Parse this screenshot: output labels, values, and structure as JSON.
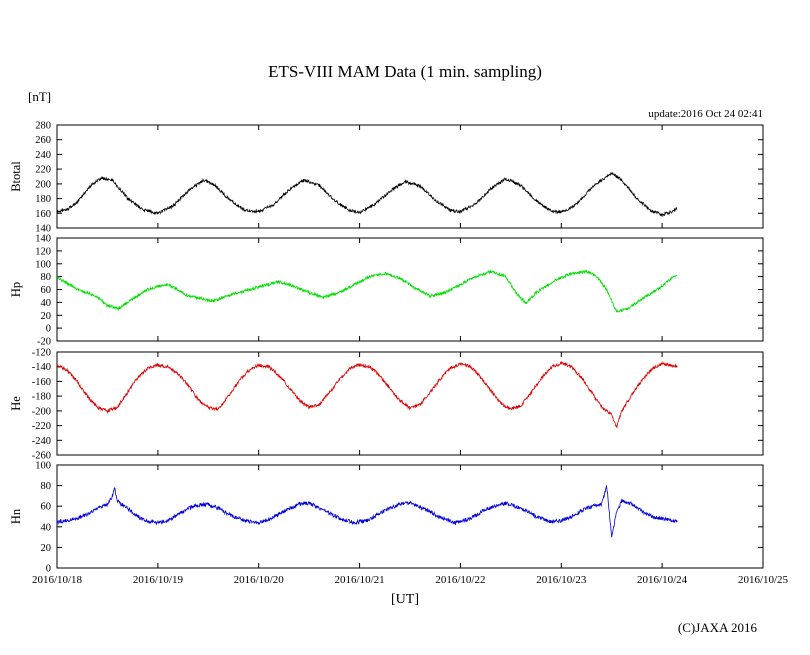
{
  "chart_data": {
    "type": "line",
    "title": "ETS-VIII MAM Data (1 min. sampling)",
    "ylabel_unit": "[nT]",
    "xlabel": "[UT]",
    "annotation_update": "update:2016 Oct 24 02:41",
    "xlim_days": [
      0,
      7
    ],
    "xtick_labels": [
      "2016/10/18",
      "2016/10/19",
      "2016/10/20",
      "2016/10/21",
      "2016/10/22",
      "2016/10/23",
      "2016/10/24",
      "2016/10/25"
    ],
    "legend": "none",
    "grid": false,
    "panels": [
      {
        "name": "Btotal",
        "ylabel": "Btotal",
        "color": "#000000",
        "ylim": [
          140,
          280
        ],
        "yticks": [
          140,
          160,
          180,
          200,
          220,
          240,
          260,
          280
        ],
        "noise_amplitude": 2.0,
        "keypoints": {
          "t_days": [
            0,
            0.1,
            0.2,
            0.35,
            0.45,
            0.55,
            0.7,
            0.85,
            1.0,
            1.15,
            1.3,
            1.45,
            1.55,
            1.7,
            1.85,
            2.0,
            2.15,
            2.3,
            2.45,
            2.6,
            2.75,
            2.9,
            3.0,
            3.15,
            3.3,
            3.45,
            3.6,
            3.75,
            3.9,
            4.0,
            4.15,
            4.3,
            4.45,
            4.6,
            4.75,
            4.9,
            5.0,
            5.15,
            5.3,
            5.45,
            5.5,
            5.6,
            5.75,
            5.9,
            6.0,
            6.1,
            6.15
          ],
          "values_nT": [
            162,
            165,
            175,
            200,
            208,
            205,
            180,
            165,
            160,
            170,
            190,
            205,
            200,
            180,
            165,
            162,
            172,
            192,
            205,
            198,
            178,
            164,
            161,
            172,
            190,
            203,
            197,
            178,
            164,
            162,
            173,
            193,
            207,
            198,
            177,
            163,
            161,
            172,
            195,
            210,
            215,
            205,
            180,
            163,
            158,
            162,
            168
          ]
        }
      },
      {
        "name": "Hp",
        "ylabel": "Hp",
        "color": "#00dd00",
        "ylim": [
          -20,
          140
        ],
        "yticks": [
          -20,
          0,
          20,
          40,
          60,
          80,
          100,
          120,
          140
        ],
        "noise_amplitude": 2.2,
        "keypoints": {
          "t_days": [
            0,
            0.1,
            0.2,
            0.3,
            0.4,
            0.5,
            0.6,
            0.7,
            0.8,
            0.9,
            1.0,
            1.1,
            1.2,
            1.3,
            1.45,
            1.55,
            1.65,
            1.8,
            1.95,
            2.1,
            2.2,
            2.35,
            2.5,
            2.65,
            2.8,
            2.95,
            3.1,
            3.25,
            3.4,
            3.55,
            3.7,
            3.85,
            4.0,
            4.15,
            4.3,
            4.45,
            4.55,
            4.65,
            4.75,
            4.85,
            4.95,
            5.1,
            5.25,
            5.35,
            5.45,
            5.55,
            5.65,
            5.75,
            5.85,
            6.0,
            6.1,
            6.15
          ],
          "values_nT": [
            78,
            70,
            60,
            55,
            48,
            35,
            30,
            40,
            50,
            60,
            65,
            68,
            60,
            50,
            45,
            42,
            48,
            55,
            62,
            68,
            72,
            65,
            55,
            48,
            55,
            68,
            80,
            85,
            78,
            62,
            50,
            55,
            68,
            80,
            88,
            80,
            55,
            38,
            55,
            65,
            75,
            85,
            88,
            80,
            60,
            25,
            30,
            40,
            50,
            65,
            78,
            82
          ]
        }
      },
      {
        "name": "He",
        "ylabel": "He",
        "color": "#dd0000",
        "ylim": [
          -260,
          -120
        ],
        "yticks": [
          -260,
          -240,
          -220,
          -200,
          -180,
          -160,
          -140,
          -120
        ],
        "noise_amplitude": 2.2,
        "keypoints": {
          "t_days": [
            0,
            0.1,
            0.2,
            0.3,
            0.4,
            0.5,
            0.6,
            0.7,
            0.8,
            0.9,
            1.0,
            1.1,
            1.2,
            1.3,
            1.4,
            1.5,
            1.6,
            1.7,
            1.8,
            1.9,
            2.0,
            2.1,
            2.2,
            2.3,
            2.4,
            2.5,
            2.6,
            2.7,
            2.8,
            2.9,
            3.0,
            3.1,
            3.2,
            3.3,
            3.4,
            3.5,
            3.6,
            3.7,
            3.8,
            3.9,
            4.0,
            4.1,
            4.2,
            4.3,
            4.4,
            4.5,
            4.6,
            4.7,
            4.8,
            4.9,
            5.0,
            5.1,
            5.2,
            5.3,
            5.4,
            5.5,
            5.55,
            5.6,
            5.7,
            5.8,
            5.9,
            6.0,
            6.1,
            6.15
          ],
          "values_nT": [
            -138,
            -145,
            -160,
            -180,
            -195,
            -200,
            -195,
            -175,
            -155,
            -142,
            -138,
            -140,
            -150,
            -165,
            -185,
            -195,
            -198,
            -180,
            -160,
            -145,
            -138,
            -140,
            -152,
            -168,
            -185,
            -195,
            -192,
            -175,
            -158,
            -143,
            -137,
            -140,
            -152,
            -170,
            -186,
            -196,
            -192,
            -175,
            -157,
            -142,
            -136,
            -140,
            -154,
            -172,
            -190,
            -198,
            -193,
            -175,
            -156,
            -141,
            -135,
            -140,
            -155,
            -175,
            -195,
            -205,
            -222,
            -200,
            -178,
            -158,
            -143,
            -136,
            -138,
            -140
          ]
        }
      },
      {
        "name": "Hn",
        "ylabel": "Hn",
        "color": "#0000dd",
        "ylim": [
          0,
          100
        ],
        "yticks": [
          0,
          20,
          40,
          60,
          80,
          100
        ],
        "noise_amplitude": 1.8,
        "keypoints": {
          "t_days": [
            0,
            0.1,
            0.2,
            0.3,
            0.4,
            0.5,
            0.55,
            0.57,
            0.6,
            0.7,
            0.8,
            0.9,
            1.0,
            1.1,
            1.2,
            1.35,
            1.5,
            1.6,
            1.75,
            1.9,
            2.0,
            2.1,
            2.25,
            2.4,
            2.5,
            2.65,
            2.8,
            2.95,
            3.1,
            3.25,
            3.4,
            3.5,
            3.65,
            3.8,
            3.95,
            4.1,
            4.25,
            4.45,
            4.6,
            4.75,
            4.9,
            5.0,
            5.1,
            5.25,
            5.4,
            5.45,
            5.5,
            5.55,
            5.6,
            5.7,
            5.8,
            5.9,
            6.0,
            6.1,
            6.15
          ],
          "values_nT": [
            45,
            46,
            48,
            52,
            58,
            62,
            70,
            78,
            65,
            58,
            50,
            45,
            44,
            46,
            52,
            60,
            62,
            58,
            50,
            45,
            44,
            47,
            55,
            62,
            63,
            56,
            48,
            44,
            47,
            56,
            62,
            63,
            57,
            49,
            44,
            48,
            57,
            63,
            58,
            50,
            45,
            46,
            50,
            58,
            62,
            80,
            30,
            55,
            65,
            62,
            55,
            50,
            48,
            46,
            45
          ]
        }
      }
    ]
  },
  "footer": {
    "copyright": "(C)JAXA 2016"
  }
}
